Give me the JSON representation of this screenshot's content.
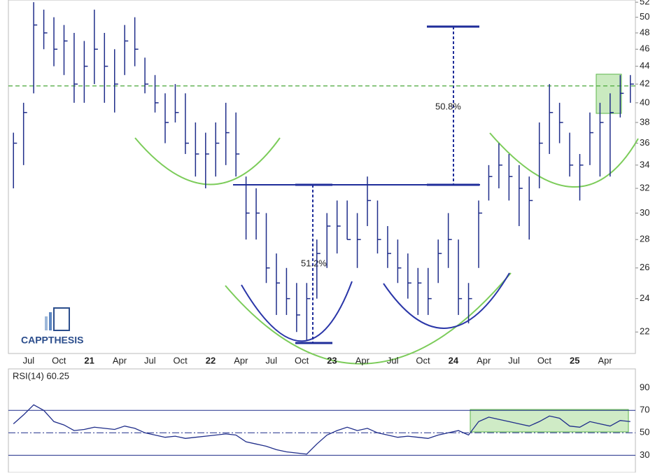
{
  "chart_data": [
    {
      "type": "ohlc",
      "log_scale": true,
      "color": "#1f2d8a",
      "categories": [
        null,
        null,
        "Jul",
        null,
        null,
        "Oct",
        null,
        null,
        "21",
        null,
        null,
        "Apr",
        null,
        null,
        "Jul",
        null,
        null,
        "Oct",
        null,
        null,
        "22",
        null,
        null,
        "Apr",
        null,
        null,
        "Jul",
        null,
        null,
        "Oct",
        null,
        null,
        "23",
        null,
        null,
        "Apr",
        null,
        null,
        "Jul",
        null,
        null,
        "Oct",
        null,
        null,
        "24",
        null,
        null,
        "Apr",
        null,
        null,
        "Jul",
        null,
        null,
        "Oct",
        null,
        null,
        "25",
        null,
        null,
        "Apr",
        null,
        null
      ],
      "high": [
        37,
        40,
        52,
        51,
        50,
        49,
        48,
        47,
        51,
        48,
        46,
        49,
        50,
        45,
        43,
        41,
        42,
        41,
        38,
        37,
        38,
        40,
        39,
        33,
        32,
        30,
        27,
        26,
        25,
        25,
        28,
        30,
        31,
        31,
        30,
        33,
        31,
        29,
        28,
        27,
        26,
        26,
        28,
        30,
        28,
        25,
        31,
        34,
        36,
        35,
        34,
        33,
        38,
        42,
        40,
        37,
        35,
        39,
        40,
        41,
        43,
        43
      ],
      "low": [
        32,
        34,
        41,
        46,
        44,
        43,
        40,
        40,
        42,
        40,
        39,
        43,
        44,
        41,
        39,
        36,
        38,
        35,
        33,
        32,
        33,
        34,
        33,
        28,
        28,
        25,
        23,
        23,
        22,
        21.5,
        24,
        26,
        27,
        28,
        26,
        29,
        27,
        26,
        25,
        24,
        23,
        23,
        25,
        26,
        23,
        22.5,
        26,
        31,
        32,
        31,
        29,
        28,
        32,
        35,
        36,
        33,
        31,
        34,
        33,
        33,
        38.5,
        40
      ],
      "close": [
        36,
        39,
        49,
        48,
        46,
        47,
        42,
        44,
        46,
        44,
        42,
        47,
        46,
        42,
        40,
        38,
        39,
        36,
        35,
        35,
        36,
        37,
        35,
        30,
        30,
        26,
        25,
        24,
        23,
        24,
        27,
        29,
        29,
        28,
        28,
        31,
        28,
        27,
        26,
        25,
        25,
        24,
        27,
        28,
        24,
        24,
        30,
        33,
        34,
        33,
        32,
        31,
        36,
        39,
        38,
        34,
        34,
        37,
        38,
        39,
        41,
        42
      ],
      "ylim": [
        20.8,
        52.3
      ],
      "yticks": [
        22,
        24,
        26,
        28,
        30,
        32,
        34,
        36,
        38,
        40,
        42,
        44,
        46,
        48,
        50,
        52
      ],
      "resistance": 41.8,
      "neckline": 32.3,
      "annotations": [
        "51.2%",
        "50.8%"
      ],
      "logo": "CAPPTHESIS"
    },
    {
      "type": "line",
      "title": "RSI(14) 60.25",
      "color": "#1f2d8a",
      "values": [
        58,
        66,
        75,
        70,
        60,
        57,
        52,
        53,
        55,
        54,
        53,
        56,
        54,
        50,
        48,
        46,
        47,
        45,
        46,
        47,
        48,
        49,
        48,
        42,
        40,
        38,
        35,
        33,
        32,
        31,
        40,
        48,
        52,
        55,
        52,
        54,
        50,
        48,
        46,
        47,
        46,
        45,
        48,
        50,
        52,
        48,
        60,
        64,
        62,
        60,
        58,
        56,
        60,
        65,
        63,
        56,
        55,
        60,
        58,
        56,
        61,
        60
      ],
      "ylim": [
        14.6,
        107
      ],
      "yticks": [
        30,
        50,
        70,
        90
      ]
    }
  ]
}
